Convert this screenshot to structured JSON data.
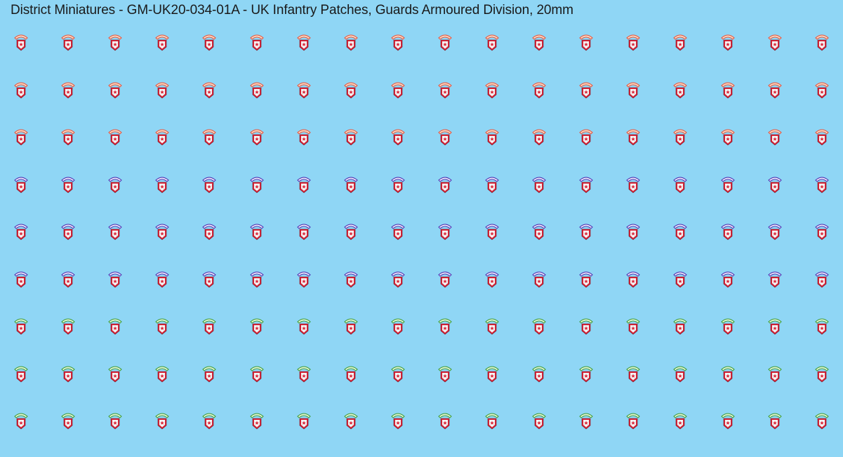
{
  "header": {
    "title": "District Miniatures - GM-UK20-034-01A - UK Infantry Patches, Guards Armoured Division, 20mm"
  },
  "sheet": {
    "background_color": "#8fd6f5",
    "columns": 18,
    "rows": 9,
    "shield_color": "#d9263a",
    "star_color": "#ffffff",
    "row_title_colors": [
      "#e8503a",
      "#e8503a",
      "#e8503a",
      "#4a2fb0",
      "#4a2fb0",
      "#4a2fb0",
      "#3a9a35",
      "#3a9a35",
      "#3a9a35"
    ],
    "row_title_fill": [
      "#f7d8c0",
      "#f7d8c0",
      "#f7d8c0",
      "#e6e0f7",
      "#e6e0f7",
      "#e6e0f7",
      "#e2f4d4",
      "#e2f4d4",
      "#e2f4d4"
    ],
    "icon": "guards-patch-icon"
  }
}
